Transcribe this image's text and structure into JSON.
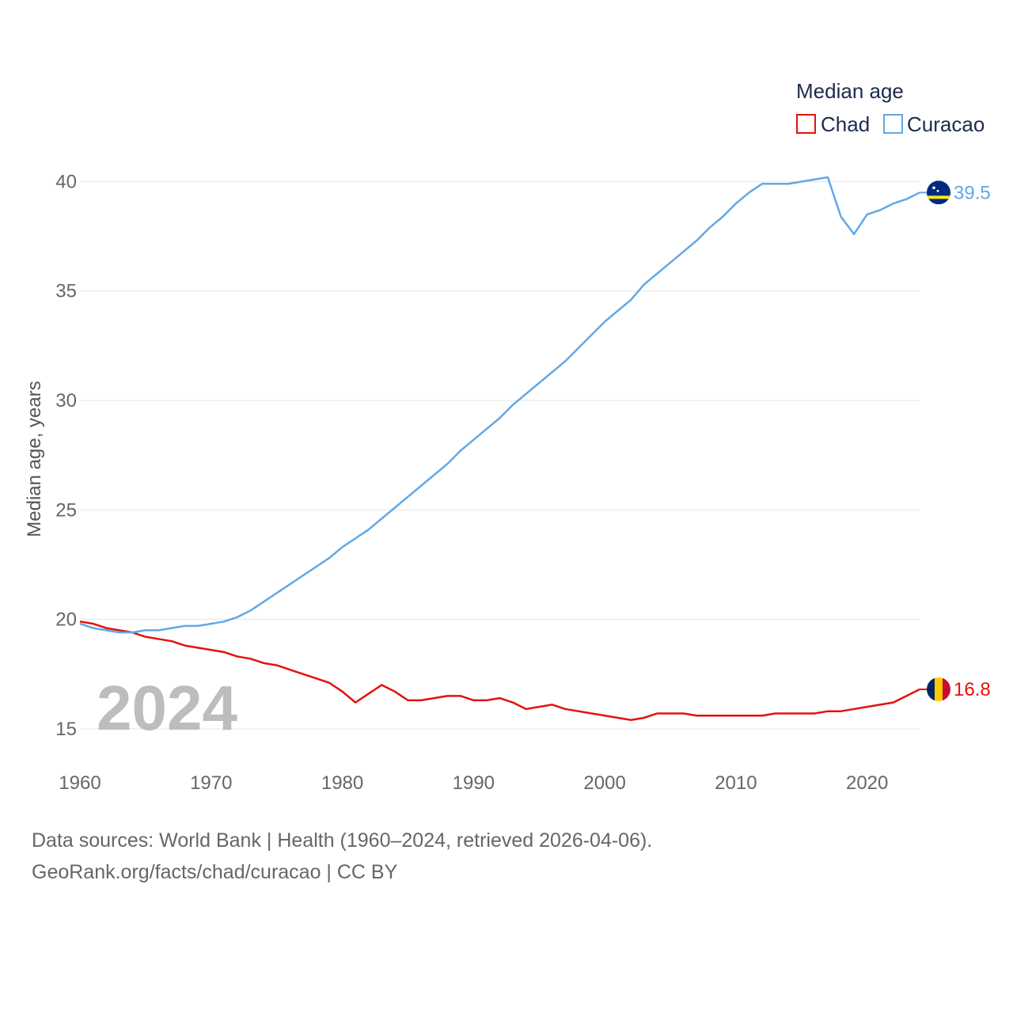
{
  "chart_data": {
    "type": "line",
    "title": "",
    "legend_title": "Median age",
    "ylabel": "Median age, years",
    "xlabel": "",
    "xlim": [
      1960,
      2024
    ],
    "ylim": [
      13.8,
      41.5
    ],
    "x_ticks": [
      1960,
      1970,
      1980,
      1990,
      2000,
      2010,
      2020
    ],
    "y_ticks": [
      15,
      20,
      25,
      30,
      35,
      40
    ],
    "grid": true,
    "legend_position": "top-right",
    "current_year_label": "2024",
    "series": [
      {
        "name": "Chad",
        "color": "#e3120b",
        "end_label": "16.8",
        "flag": "chad-flag",
        "points": [
          [
            1960,
            19.9
          ],
          [
            1961,
            19.8
          ],
          [
            1962,
            19.6
          ],
          [
            1963,
            19.5
          ],
          [
            1964,
            19.4
          ],
          [
            1965,
            19.2
          ],
          [
            1966,
            19.1
          ],
          [
            1967,
            19.0
          ],
          [
            1968,
            18.8
          ],
          [
            1969,
            18.7
          ],
          [
            1970,
            18.6
          ],
          [
            1971,
            18.5
          ],
          [
            1972,
            18.3
          ],
          [
            1973,
            18.2
          ],
          [
            1974,
            18.0
          ],
          [
            1975,
            17.9
          ],
          [
            1976,
            17.7
          ],
          [
            1977,
            17.5
          ],
          [
            1978,
            17.3
          ],
          [
            1979,
            17.1
          ],
          [
            1980,
            16.7
          ],
          [
            1981,
            16.2
          ],
          [
            1982,
            16.6
          ],
          [
            1983,
            17.0
          ],
          [
            1984,
            16.7
          ],
          [
            1985,
            16.3
          ],
          [
            1986,
            16.3
          ],
          [
            1987,
            16.4
          ],
          [
            1988,
            16.5
          ],
          [
            1989,
            16.5
          ],
          [
            1990,
            16.3
          ],
          [
            1991,
            16.3
          ],
          [
            1992,
            16.4
          ],
          [
            1993,
            16.2
          ],
          [
            1994,
            15.9
          ],
          [
            1995,
            16.0
          ],
          [
            1996,
            16.1
          ],
          [
            1997,
            15.9
          ],
          [
            1998,
            15.8
          ],
          [
            1999,
            15.7
          ],
          [
            2000,
            15.6
          ],
          [
            2001,
            15.5
          ],
          [
            2002,
            15.4
          ],
          [
            2003,
            15.5
          ],
          [
            2004,
            15.7
          ],
          [
            2005,
            15.7
          ],
          [
            2006,
            15.7
          ],
          [
            2007,
            15.6
          ],
          [
            2008,
            15.6
          ],
          [
            2009,
            15.6
          ],
          [
            2010,
            15.6
          ],
          [
            2011,
            15.6
          ],
          [
            2012,
            15.6
          ],
          [
            2013,
            15.7
          ],
          [
            2014,
            15.7
          ],
          [
            2015,
            15.7
          ],
          [
            2016,
            15.7
          ],
          [
            2017,
            15.8
          ],
          [
            2018,
            15.8
          ],
          [
            2019,
            15.9
          ],
          [
            2020,
            16.0
          ],
          [
            2021,
            16.1
          ],
          [
            2022,
            16.2
          ],
          [
            2023,
            16.5
          ],
          [
            2024,
            16.8
          ]
        ]
      },
      {
        "name": "Curacao",
        "color": "#62a8e5",
        "end_label": "39.5",
        "flag": "curacao-flag",
        "points": [
          [
            1960,
            19.8
          ],
          [
            1961,
            19.6
          ],
          [
            1962,
            19.5
          ],
          [
            1963,
            19.4
          ],
          [
            1964,
            19.4
          ],
          [
            1965,
            19.5
          ],
          [
            1966,
            19.5
          ],
          [
            1967,
            19.6
          ],
          [
            1968,
            19.7
          ],
          [
            1969,
            19.7
          ],
          [
            1970,
            19.8
          ],
          [
            1971,
            19.9
          ],
          [
            1972,
            20.1
          ],
          [
            1973,
            20.4
          ],
          [
            1974,
            20.8
          ],
          [
            1975,
            21.2
          ],
          [
            1976,
            21.6
          ],
          [
            1977,
            22.0
          ],
          [
            1978,
            22.4
          ],
          [
            1979,
            22.8
          ],
          [
            1980,
            23.3
          ],
          [
            1981,
            23.7
          ],
          [
            1982,
            24.1
          ],
          [
            1983,
            24.6
          ],
          [
            1984,
            25.1
          ],
          [
            1985,
            25.6
          ],
          [
            1986,
            26.1
          ],
          [
            1987,
            26.6
          ],
          [
            1988,
            27.1
          ],
          [
            1989,
            27.7
          ],
          [
            1990,
            28.2
          ],
          [
            1991,
            28.7
          ],
          [
            1992,
            29.2
          ],
          [
            1993,
            29.8
          ],
          [
            1994,
            30.3
          ],
          [
            1995,
            30.8
          ],
          [
            1996,
            31.3
          ],
          [
            1997,
            31.8
          ],
          [
            1998,
            32.4
          ],
          [
            1999,
            33.0
          ],
          [
            2000,
            33.6
          ],
          [
            2001,
            34.1
          ],
          [
            2002,
            34.6
          ],
          [
            2003,
            35.3
          ],
          [
            2004,
            35.8
          ],
          [
            2005,
            36.3
          ],
          [
            2006,
            36.8
          ],
          [
            2007,
            37.3
          ],
          [
            2008,
            37.9
          ],
          [
            2009,
            38.4
          ],
          [
            2010,
            39.0
          ],
          [
            2011,
            39.5
          ],
          [
            2012,
            39.9
          ],
          [
            2013,
            39.9
          ],
          [
            2014,
            39.9
          ],
          [
            2015,
            40.0
          ],
          [
            2016,
            40.1
          ],
          [
            2017,
            40.2
          ],
          [
            2018,
            38.4
          ],
          [
            2019,
            37.6
          ],
          [
            2020,
            38.5
          ],
          [
            2021,
            38.7
          ],
          [
            2022,
            39.0
          ],
          [
            2023,
            39.2
          ],
          [
            2024,
            39.5
          ]
        ]
      }
    ]
  },
  "footer": {
    "line1": "Data sources: World Bank | Health (1960–2024, retrieved 2026-04-06).",
    "line2": "GeoRank.org/facts/chad/curacao | CC BY"
  }
}
